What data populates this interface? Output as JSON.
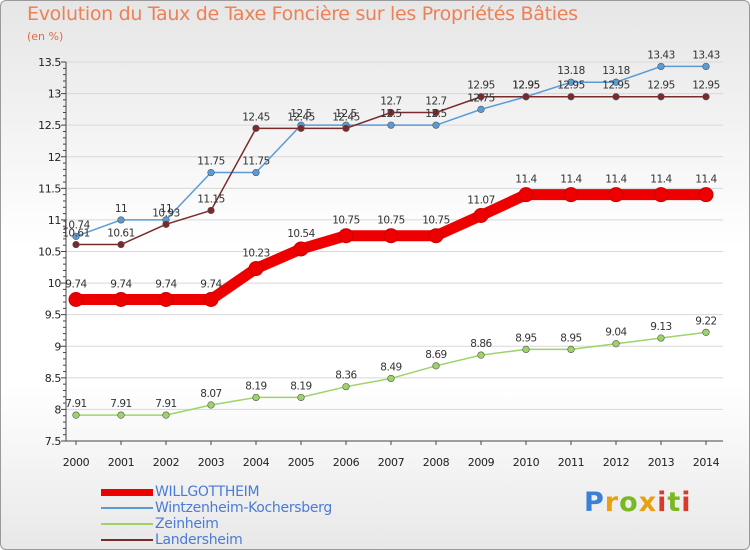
{
  "title": "Evolution du Taux de Taxe Foncière sur les Propriétés Bâties",
  "unit": "(en %)",
  "logo": "Proxiti",
  "chart_data": {
    "type": "line",
    "title": "Evolution du Taux de Taxe Foncière sur les Propriétés Bâties",
    "ylabel": "(en %)",
    "xlabel": "",
    "ylim": [
      7.5,
      13.5
    ],
    "yticks": [
      "7.5",
      "8",
      "8.5",
      "9",
      "9.5",
      "10",
      "10.5",
      "11",
      "11.5",
      "12",
      "12.5",
      "13",
      "13.5"
    ],
    "categories": [
      "2000",
      "2001",
      "2002",
      "2003",
      "2004",
      "2005",
      "2006",
      "2007",
      "2008",
      "2009",
      "2010",
      "2011",
      "2012",
      "2013",
      "2014"
    ],
    "grid": true,
    "legend": "bottom-left",
    "series": [
      {
        "name": "Wintzenheim-Kochersberg",
        "color": "#5a9bd5",
        "values": [
          10.74,
          11,
          11,
          11.75,
          11.75,
          12.5,
          12.5,
          12.5,
          12.5,
          12.75,
          12.95,
          13.18,
          13.18,
          13.43,
          13.43
        ],
        "labels": [
          "10.74",
          "11",
          "11",
          "11.75",
          "11.75",
          "12.5",
          "12.5",
          "12.5",
          "12.5",
          "12.75",
          "12.95",
          "13.18",
          "13.18",
          "13.43",
          "13.43"
        ]
      },
      {
        "name": "Zeinheim",
        "color": "#9ed36a",
        "values": [
          7.91,
          7.91,
          7.91,
          8.07,
          8.19,
          8.19,
          8.36,
          8.49,
          8.69,
          8.86,
          8.95,
          8.95,
          9.04,
          9.13,
          9.22
        ],
        "labels": [
          "7.91",
          "7.91",
          "7.91",
          "8.07",
          "8.19",
          "8.19",
          "8.36",
          "8.49",
          "8.69",
          "8.86",
          "8.95",
          "8.95",
          "9.04",
          "9.13",
          "9.22"
        ]
      },
      {
        "name": "Landersheim",
        "color": "#7a2a2a",
        "values": [
          10.61,
          10.61,
          10.93,
          11.15,
          12.45,
          12.45,
          12.45,
          12.7,
          12.7,
          12.95,
          12.95,
          12.95,
          12.95,
          12.95,
          12.95
        ],
        "labels": [
          "10.61",
          "10.61",
          "10.93",
          "11.15",
          "12.45",
          "12.45",
          "12.45",
          "12.7",
          "12.7",
          "12.95",
          "12.95",
          "12.95",
          "12.95",
          "12.95",
          "12.95"
        ]
      },
      {
        "name": "WILLGOTTHEIM",
        "color": "#ee0000",
        "values": [
          9.74,
          9.74,
          9.74,
          9.74,
          10.23,
          10.54,
          10.75,
          10.75,
          10.75,
          11.07,
          11.4,
          11.4,
          11.4,
          11.4,
          11.4
        ],
        "labels": [
          "9.74",
          "9.74",
          "9.74",
          "9.74",
          "10.23",
          "10.54",
          "10.75",
          "10.75",
          "10.75",
          "11.07",
          "11.4",
          "11.4",
          "11.4",
          "11.4",
          "11.4"
        ]
      }
    ]
  },
  "legend": [
    {
      "name": "WILLGOTTHEIM",
      "color": "#ee0000"
    },
    {
      "name": "Wintzenheim-Kochersberg",
      "color": "#5a9bd5"
    },
    {
      "name": "Zeinheim",
      "color": "#9ed36a"
    },
    {
      "name": "Landersheim",
      "color": "#7a2a2a"
    }
  ]
}
